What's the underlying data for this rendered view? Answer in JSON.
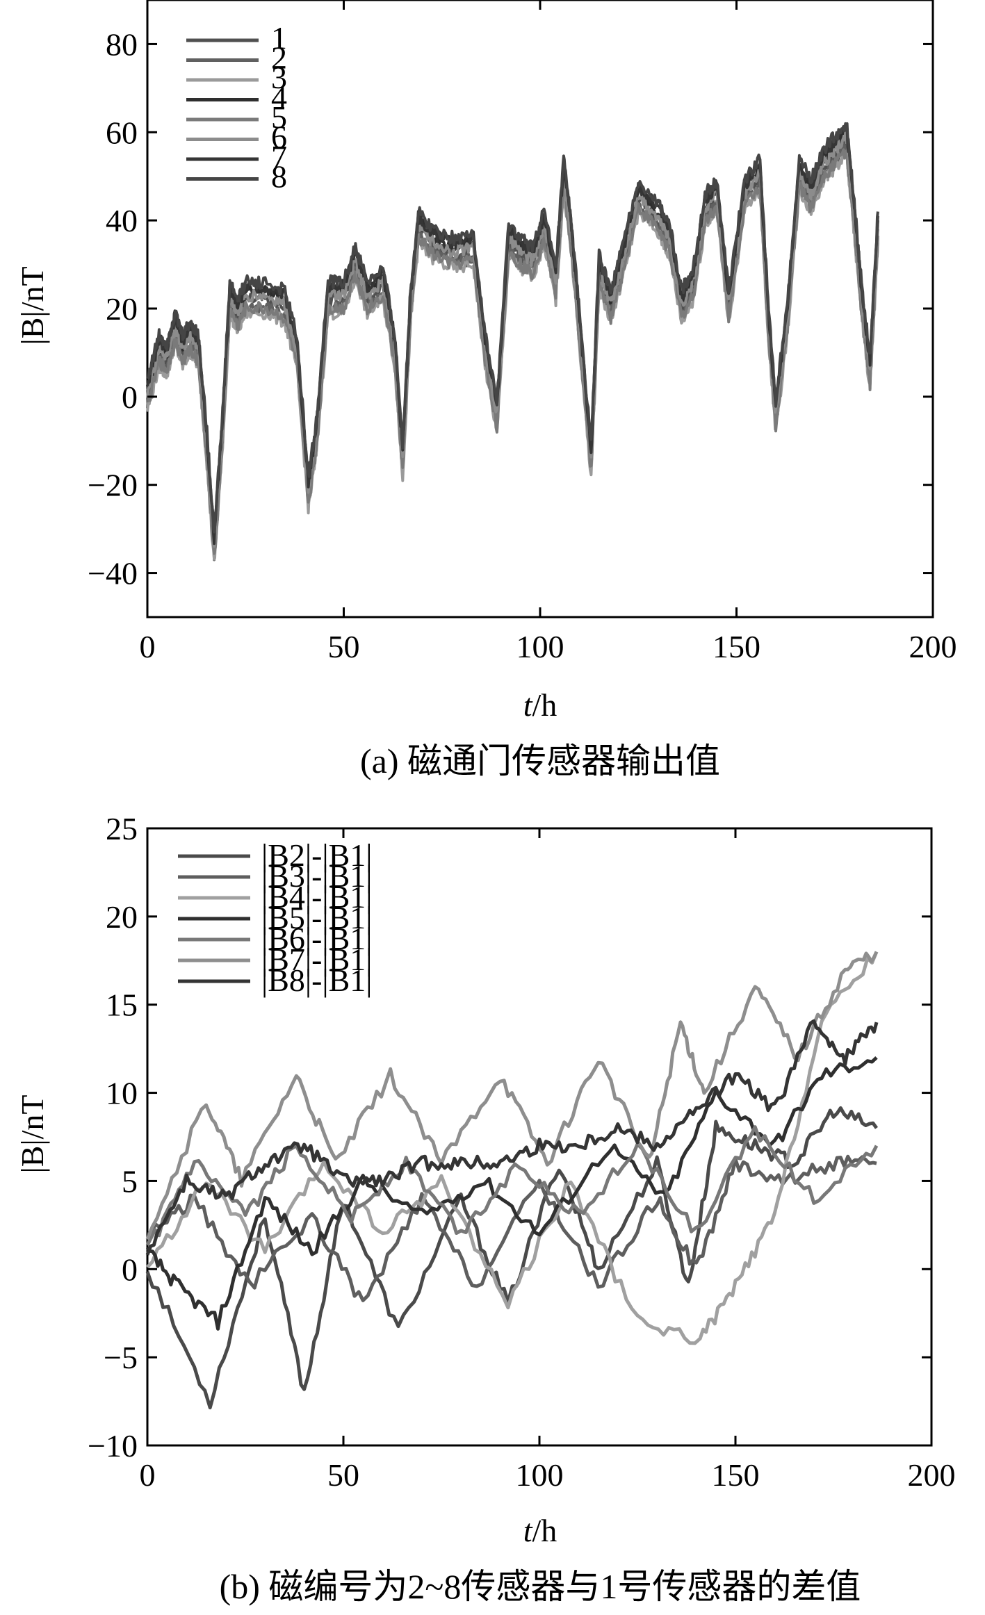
{
  "chart_data": [
    {
      "type": "line",
      "caption": "(a) 磁通门传感器输出值",
      "xlabel_italic": "t",
      "xlabel_rest": "/h",
      "ylabel": "|B|/nT",
      "xlim": [
        0,
        200
      ],
      "ylim": [
        -50,
        90
      ],
      "xticks": [
        "0",
        "50",
        "100",
        "150",
        "200"
      ],
      "yticks": [
        "80",
        "60",
        "40",
        "20",
        "0",
        "−20",
        "−40"
      ],
      "ytick_values": [
        80,
        60,
        40,
        20,
        0,
        -20,
        -40
      ],
      "xtick_values": [
        0,
        50,
        100,
        150,
        200
      ],
      "legend_position": "top-left",
      "series_color_base": "#3a3a3a",
      "series": [
        {
          "name": "1",
          "color": "#505050",
          "offset": 0
        },
        {
          "name": "2",
          "color": "#606060",
          "offset": -1.5
        },
        {
          "name": "3",
          "color": "#9a9a9a",
          "offset": -3
        },
        {
          "name": "4",
          "color": "#2e2e2e",
          "offset": 2
        },
        {
          "name": "5",
          "color": "#7a7a7a",
          "offset": -2
        },
        {
          "name": "6",
          "color": "#8c8c8c",
          "offset": 1
        },
        {
          "name": "7",
          "color": "#353535",
          "offset": 3
        },
        {
          "name": "8",
          "color": "#454545",
          "offset": 4
        }
      ],
      "x": [
        0,
        3,
        5,
        7,
        9,
        11,
        13,
        15,
        17,
        19,
        21,
        23,
        25,
        30,
        35,
        38,
        41,
        43,
        46,
        50,
        53,
        56,
        60,
        63,
        65,
        67,
        69,
        73,
        78,
        83,
        86,
        89,
        92,
        95,
        98,
        101,
        104,
        106,
        108,
        110,
        113,
        115,
        118,
        121,
        125,
        130,
        133,
        136,
        139,
        142,
        145,
        148,
        152,
        156,
        158,
        160,
        163,
        166,
        169,
        172,
        175,
        178,
        180,
        182,
        184,
        186
      ],
      "y": [
        0,
        10,
        8,
        15,
        10,
        13,
        10,
        -10,
        -35,
        -10,
        22,
        18,
        22,
        22,
        20,
        10,
        -22,
        -10,
        22,
        22,
        30,
        22,
        25,
        10,
        -15,
        20,
        38,
        34,
        32,
        33,
        10,
        -5,
        35,
        32,
        30,
        38,
        25,
        50,
        35,
        15,
        -15,
        28,
        20,
        30,
        45,
        40,
        35,
        20,
        25,
        42,
        45,
        20,
        45,
        50,
        18,
        -5,
        18,
        50,
        45,
        52,
        55,
        58,
        40,
        20,
        5,
        38
      ]
    },
    {
      "type": "line",
      "caption": "(b) 磁编号为2~8传感器与1号传感器的差值",
      "xlabel_italic": "t",
      "xlabel_rest": "/h",
      "ylabel": "|B|/nT",
      "xlim": [
        0,
        200
      ],
      "ylim": [
        -10,
        25
      ],
      "xticks": [
        "0",
        "50",
        "100",
        "150",
        "200"
      ],
      "yticks": [
        "25",
        "20",
        "15",
        "10",
        "5",
        "0",
        "−5",
        "−10"
      ],
      "ytick_values": [
        25,
        20,
        15,
        10,
        5,
        0,
        -5,
        -10
      ],
      "xtick_values": [
        0,
        50,
        100,
        150,
        200
      ],
      "legend_position": "top-left",
      "series": [
        {
          "name": "|B2|-|B1|",
          "color": "#4a4a4a",
          "x": [
            0,
            16,
            30,
            40,
            50,
            64,
            80,
            92,
            105,
            115,
            130,
            138,
            145,
            155,
            165,
            175,
            186
          ],
          "y": [
            0,
            -7.5,
            3,
            -7,
            4,
            -3.5,
            4,
            -2,
            6,
            0,
            6,
            -1,
            8,
            7,
            6,
            9,
            8
          ]
        },
        {
          "name": "|B3|-|B1|",
          "color": "#5e5e5e",
          "x": [
            0,
            12,
            26,
            42,
            55,
            70,
            84,
            100,
            115,
            130,
            140,
            150,
            162,
            175,
            186
          ],
          "y": [
            2,
            4,
            -1,
            3,
            -2,
            4,
            -1,
            5,
            -1,
            4,
            0,
            6,
            5,
            6,
            6
          ]
        },
        {
          "name": "|B4|-|B1|",
          "color": "#a0a0a0",
          "x": [
            0,
            15,
            30,
            45,
            60,
            75,
            92,
            108,
            125,
            141,
            150,
            160,
            172,
            186
          ],
          "y": [
            0,
            5,
            1,
            6,
            2,
            5,
            -2,
            5,
            -3,
            -4,
            -1,
            3,
            14,
            18
          ]
        },
        {
          "name": "|B5|-|B1|",
          "color": "#2f2f2f",
          "x": [
            0,
            8,
            18,
            30,
            42,
            55,
            70,
            86,
            100,
            118,
            132,
            145,
            160,
            172,
            186
          ],
          "y": [
            1,
            -1,
            -3,
            4,
            1,
            5,
            3,
            5,
            2,
            7,
            4,
            10,
            7,
            11,
            12
          ]
        },
        {
          "name": "|B6|-|B1|",
          "color": "#787878",
          "x": [
            0,
            12,
            25,
            38,
            52,
            66,
            80,
            95,
            110,
            125,
            140,
            155,
            170,
            186
          ],
          "y": [
            1,
            6,
            3,
            7,
            3,
            6,
            2,
            6,
            3,
            7,
            2,
            8,
            4,
            7
          ]
        },
        {
          "name": "|B7|-|B1|",
          "color": "#8e8e8e",
          "x": [
            0,
            15,
            24,
            38,
            48,
            62,
            75,
            90,
            102,
            115,
            128,
            136,
            142,
            155,
            166,
            178,
            186
          ],
          "y": [
            2,
            9.5,
            5,
            11,
            6,
            11,
            6,
            11,
            6,
            12,
            6,
            14,
            10,
            16,
            12,
            17,
            18
          ]
        },
        {
          "name": "|B8|-|B1|",
          "color": "#343434",
          "x": [
            0,
            10,
            20,
            30,
            40,
            50,
            60,
            70,
            80,
            90,
            100,
            110,
            120,
            130,
            140,
            150,
            160,
            170,
            178,
            186
          ],
          "y": [
            1,
            5,
            4,
            6,
            7,
            5,
            5,
            6,
            6,
            6,
            7,
            7,
            8,
            7,
            9,
            11,
            9,
            14,
            12,
            14
          ]
        }
      ]
    }
  ]
}
